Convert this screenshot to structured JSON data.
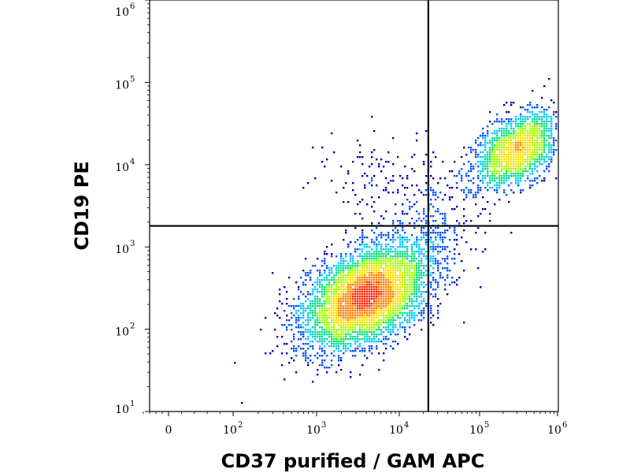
{
  "chart_data": {
    "type": "scatter",
    "xlabel": "CD37 purified / GAM APC",
    "ylabel": "CD19 PE",
    "x_scale": "biexponential (log above 10^2)",
    "y_scale": "log",
    "xlim": [
      -100,
      1000000
    ],
    "ylim": [
      10,
      1000000
    ],
    "x_ticks": [
      {
        "value": 0,
        "label": "0",
        "exp": ""
      },
      {
        "value": 100,
        "label": "10",
        "exp": "2"
      },
      {
        "value": 1000,
        "label": "10",
        "exp": "3"
      },
      {
        "value": 10000,
        "label": "10",
        "exp": "4"
      },
      {
        "value": 100000,
        "label": "10",
        "exp": "5"
      },
      {
        "value": 1000000,
        "label": "10",
        "exp": "6"
      }
    ],
    "y_ticks": [
      {
        "value": 10,
        "label": "10",
        "exp": "1"
      },
      {
        "value": 100,
        "label": "10",
        "exp": "2"
      },
      {
        "value": 1000,
        "label": "10",
        "exp": "3"
      },
      {
        "value": 10000,
        "label": "10",
        "exp": "4"
      },
      {
        "value": 100000,
        "label": "10",
        "exp": "5"
      },
      {
        "value": 1000000,
        "label": "10",
        "exp": "6"
      }
    ],
    "quadrant_gate": {
      "x": 23000,
      "y": 1800
    },
    "populations": [
      {
        "x_center": 4000,
        "y_center": 250,
        "x_spread_decades": 0.38,
        "y_spread_decades": 0.28,
        "tilt": 0.35,
        "events": 5200
      },
      {
        "x_center": 300000,
        "y_center": 15000,
        "x_spread_decades": 0.28,
        "y_spread_decades": 0.2,
        "tilt": 0.4,
        "events": 1900
      },
      {
        "x_center": 6000,
        "y_center": 7000,
        "x_spread_decades": 0.35,
        "y_spread_decades": 0.25,
        "tilt": 0.0,
        "events": 130
      },
      {
        "x_center": 25000,
        "y_center": 1500,
        "x_spread_decades": 0.3,
        "y_spread_decades": 0.35,
        "tilt": 0.6,
        "events": 320
      }
    ],
    "density_colors": [
      "#0000b4",
      "#0050ff",
      "#00c8ff",
      "#00e080",
      "#a0ff00",
      "#ffe000",
      "#ff8000",
      "#ff2000"
    ],
    "grid": false,
    "legend": "none"
  }
}
